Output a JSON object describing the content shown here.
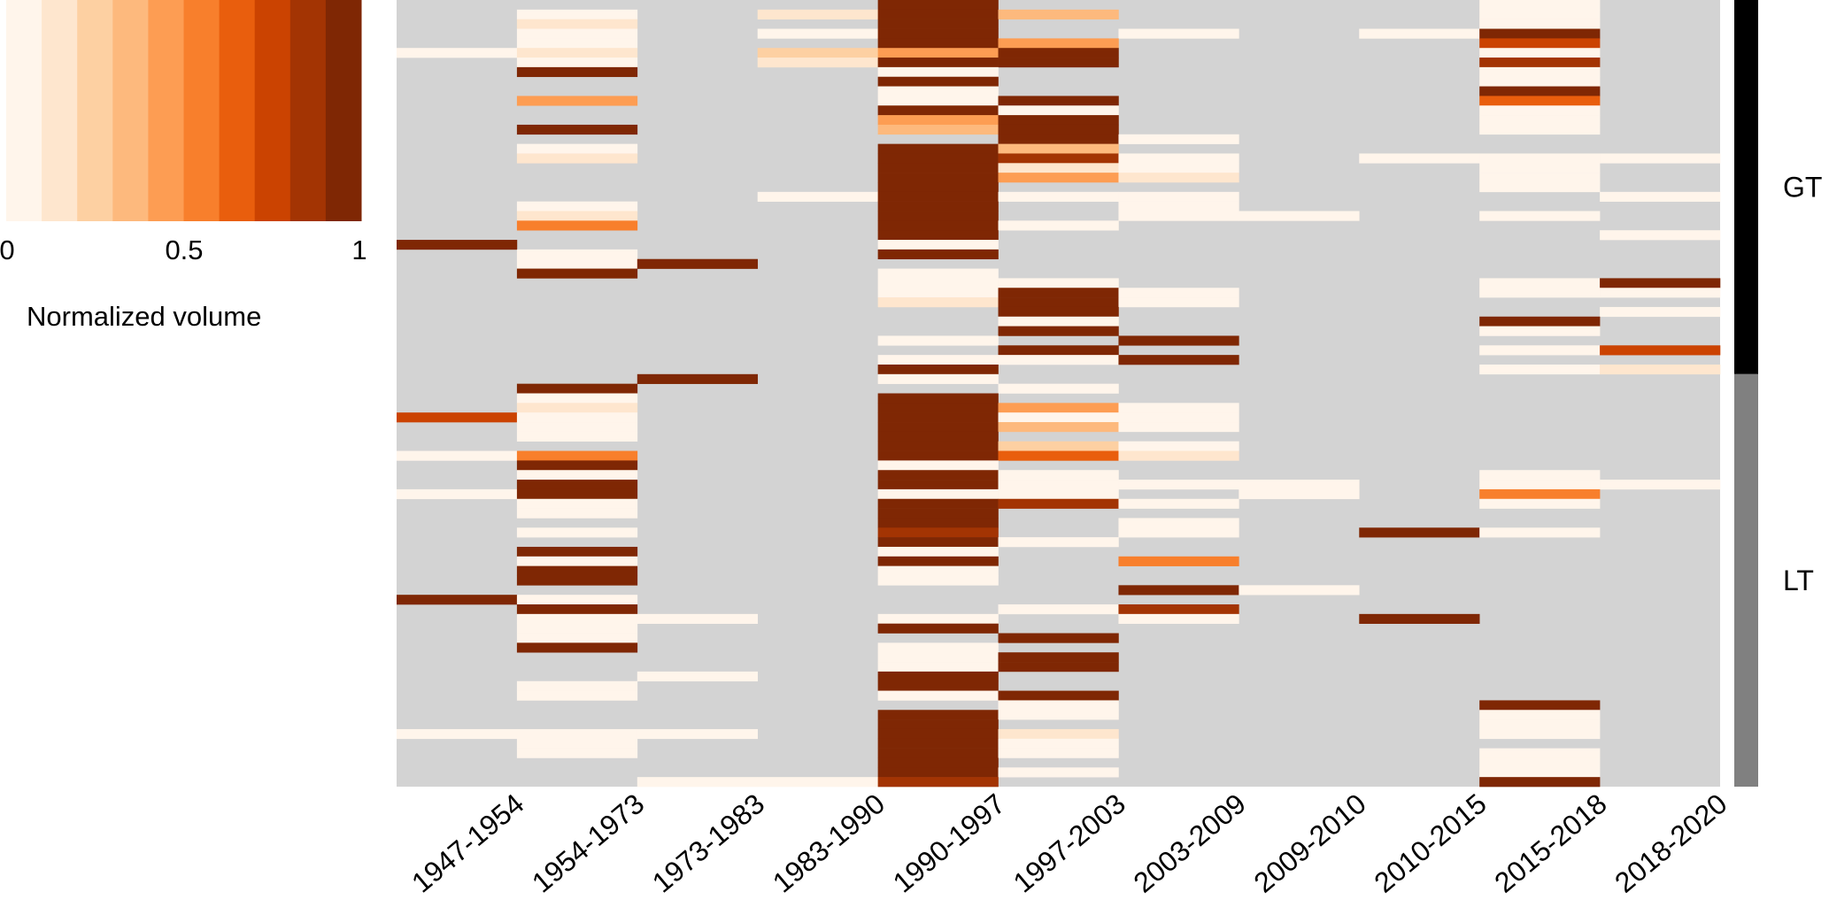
{
  "chart_data": {
    "type": "heatmap",
    "title": "",
    "xlabel": "",
    "ylabel": "",
    "categories": [
      "1947-1954",
      "1954-1973",
      "1973-1983",
      "1983-1990",
      "1990-1997",
      "1997-2003",
      "2003-2009",
      "2009-2010",
      "2010-2015",
      "2015-2018",
      "2018-2020"
    ],
    "na_color": "#d3d3d3",
    "legend": {
      "title": "Normalized volume",
      "ticks": [
        "0",
        "0.5",
        "1"
      ],
      "range": [
        0,
        1
      ],
      "levels": [
        0.05,
        0.15,
        0.25,
        0.35,
        0.45,
        0.55,
        0.65,
        0.75,
        0.85,
        0.95
      ],
      "colors": [
        "#fff5eb",
        "#fee6ce",
        "#fdd0a2",
        "#fdb97d",
        "#fd9d53",
        "#f87f2c",
        "#e95e0d",
        "#cb4301",
        "#a33403",
        "#7f2704"
      ]
    },
    "row_groups": [
      {
        "label": "GT",
        "rows": 39,
        "color": "#000000"
      },
      {
        "label": "LT",
        "rows": 43,
        "color": "#808080"
      }
    ],
    "cell_coding": "each row string has one character per category; digit = index into legend.levels, '.' = no data",
    "rows": [
      "....9....0.",
      ".0.193...0.",
      ".1..9....0.",
      ".0.09.0.09.",
      ".0..94...7.",
      "01.249...0.",
      ".0.199...8.",
      ".9..0....0.",
      "....9....0.",
      "....0....9.",
      ".4..09...6.",
      "....90...0.",
      "....49...0.",
      ".9..39...0.",
      ".....90....",
      ".0..93.....",
      ".1..980.000",
      "....910..0.",
      "....941..0.",
      "....9....0.",
      "...0900...0",
      ".0..9.0....",
      ".1..9.00.0.",
      ".5..90.....",
      "....9.....0",
      "9...0......",
      ".0..9......",
      ".09........",
      ".9..0......",
      "....00...09",
      "....090..00",
      "....190....",
      ".....9....0",
      ".....0...9.",
      ".....9...0.",
      "....0.9....",
      ".....9...07",
      "....009....",
      "....9....01",
      "..9.0......",
      ".9...0.....",
      ".0..9......",
      ".1..940....",
      "70..900....",
      ".0..930....",
      ".0..9......",
      "....920....",
      "05..961....",
      ".9..0......",
      ".0..90...0.",
      ".9..9000.00",
      "09..00.0.5.",
      ".0..980..0.",
      ".0..9......",
      "....9.0....",
      ".0..8.0.90.",
      "....90.....",
      ".9..0......",
      ".0..9.5....",
      ".9..0......",
      ".9..0......",
      "......90...",
      "90.........",
      ".9...08....",
      ".00.0.0.9..",
      ".0..9......",
      ".0...9.....",
      ".9..0......",
      "....09.....",
      "....09.....",
      "..0.9......",
      ".0..9......",
      ".0..09.....",
      ".....0...9.",
      "....90...0.",
      "....9....0.",
      "000.91...0.",
      ".0..90.....",
      ".0..90...0.",
      "....9....0.",
      "....90...0.",
      "..008....9."
    ]
  }
}
